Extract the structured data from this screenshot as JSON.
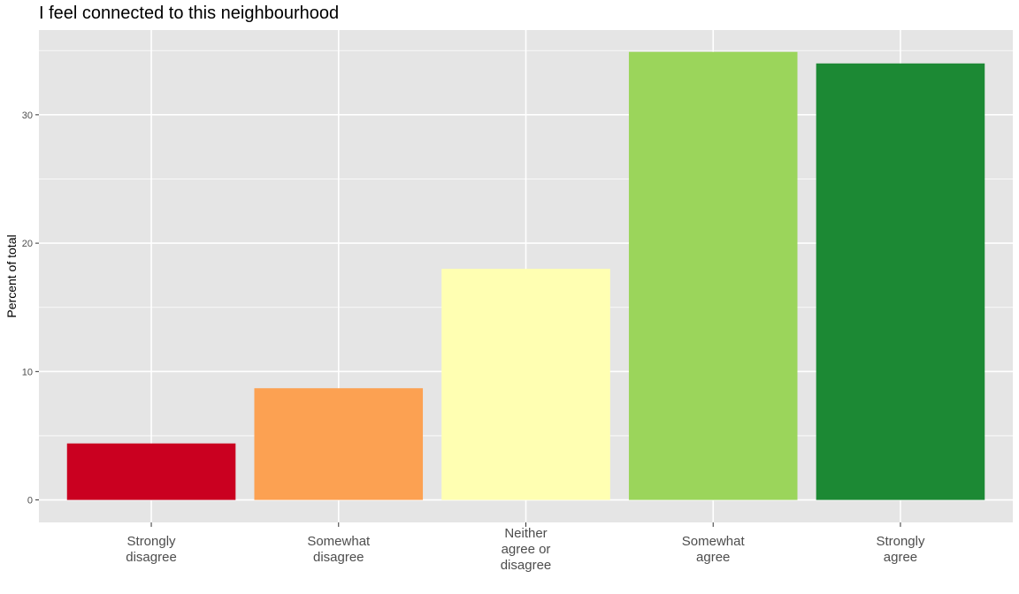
{
  "chart_data": {
    "type": "bar",
    "title": "I feel connected to this neighbourhood",
    "xlabel": "",
    "ylabel": "Percent of total",
    "categories": [
      [
        "Strongly",
        "disagree"
      ],
      [
        "Somewhat",
        "disagree"
      ],
      [
        "Neither",
        "agree or",
        "disagree"
      ],
      [
        "Somewhat",
        "agree"
      ],
      [
        "Strongly",
        "agree"
      ]
    ],
    "values": [
      4.4,
      8.7,
      18.0,
      34.9,
      34.0
    ],
    "colors": [
      "#ca0020",
      "#fca152",
      "#ffffb2",
      "#9bd55b",
      "#1c8934"
    ],
    "ylim": [
      -1.75,
      36.6
    ],
    "yticks": [
      0,
      10,
      20,
      30
    ],
    "grid": true,
    "panel_background": "#e5e5e5",
    "grid_color": "#ffffff"
  }
}
